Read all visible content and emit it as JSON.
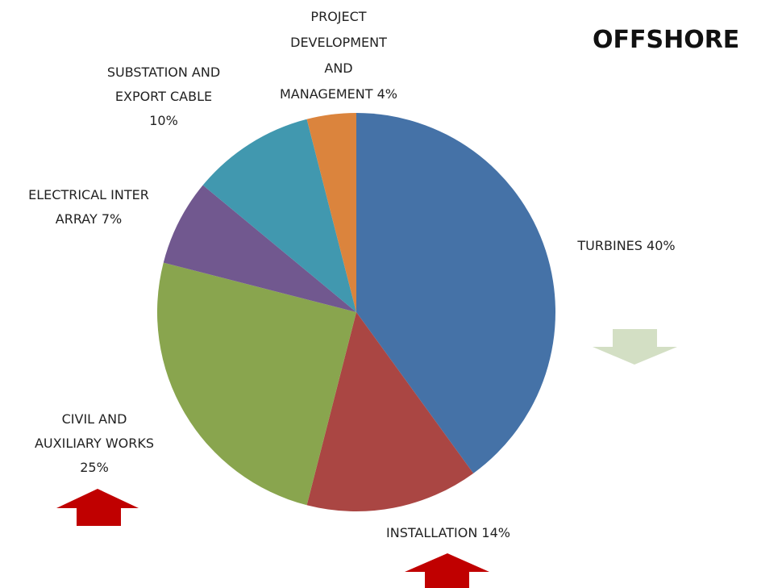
{
  "chart_data": {
    "type": "pie",
    "title": "OFFSHORE",
    "categories": [
      "TURBINES",
      "INSTALLATION",
      "CIVIL AND\nAUXILIARY WORKS",
      "ELECTRICAL INTER\nARRAY",
      "SUBSTATION AND\nEXPORT CABLE",
      "PROJECT\nDEVELOPMENT\nAND\nMANAGEMENT"
    ],
    "values": [
      40,
      14,
      25,
      7,
      10,
      4
    ],
    "value_labels": [
      "40%",
      "14%",
      "25%",
      "7%",
      "10%",
      "4%"
    ],
    "colors": [
      "#4572a7",
      "#aa4643",
      "#89a54e",
      "#71588f",
      "#4198af",
      "#db843d"
    ]
  }
}
